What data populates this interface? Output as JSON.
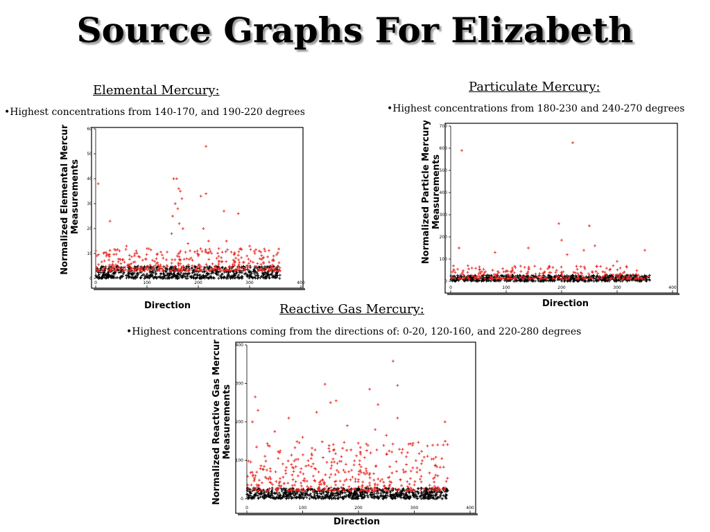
{
  "title": "Source Graphs For Elizabeth",
  "sections": {
    "elemental": {
      "heading": "Elemental Mercury:",
      "note": "•Highest concentrations from 140-170, and 190-220 degrees"
    },
    "particulate": {
      "heading": "Particulate Mercury:",
      "note": "•Highest concentrations from 180-230 and 240-270 degrees"
    },
    "reactive": {
      "heading": "Reactive Gas Mercury:",
      "note": "•Highest concentrations coming from the directions of: 0-20, 120-160, and 220-280 degrees"
    }
  },
  "colors": {
    "high": "#e8251f",
    "low": "#000000",
    "frame": "#000000"
  },
  "chart_data": [
    {
      "type": "scatter",
      "title": "",
      "xlabel": "Direction",
      "ylabel": [
        "Normalized Elemental Mercury",
        "Measurements"
      ],
      "xlim": [
        0,
        400
      ],
      "ylim": [
        0,
        60
      ],
      "xticks": [
        0,
        100,
        200,
        300,
        400
      ],
      "yticks": [
        0,
        10,
        20,
        30,
        40,
        50,
        60
      ],
      "series": [
        {
          "color": "#e8251f",
          "points": [
            [
              5,
              38
            ],
            [
              28,
              23
            ],
            [
              152,
              40
            ],
            [
              158,
              40
            ],
            [
              162,
              36
            ],
            [
              165,
              35
            ],
            [
              168,
              32
            ],
            [
              155,
              30
            ],
            [
              160,
              28
            ],
            [
              150,
              25
            ],
            [
              163,
              22
            ],
            [
              170,
              20
            ],
            [
              148,
              18
            ],
            [
              215,
              53
            ],
            [
              215,
              34
            ],
            [
              205,
              33
            ],
            [
              250,
              27
            ],
            [
              278,
              26
            ],
            [
              210,
              20
            ],
            [
              220,
              15
            ],
            [
              255,
              15
            ],
            [
              240,
              12
            ],
            [
              100,
              12
            ],
            [
              60,
              13
            ],
            [
              180,
              14
            ],
            [
              300,
              13
            ],
            [
              330,
              11
            ]
          ]
        },
        {
          "color": "#000000",
          "points": []
        }
      ],
      "band_note": "dense band: black points 0-5, red points 3-12 across 0-360 degrees"
    },
    {
      "type": "scatter",
      "title": "",
      "xlabel": "Direction",
      "ylabel": [
        "Normalized Particle Mercury",
        "Measurements"
      ],
      "xlim": [
        0,
        400
      ],
      "ylim": [
        0,
        700
      ],
      "xticks": [
        0,
        100,
        200,
        300,
        400
      ],
      "yticks": [
        0,
        100,
        200,
        300,
        400,
        500,
        600,
        700
      ],
      "series": [
        {
          "color": "#e8251f",
          "points": [
            [
              20,
              590
            ],
            [
              220,
              625
            ],
            [
              195,
              260
            ],
            [
              250,
              250
            ],
            [
              200,
              185
            ],
            [
              140,
              150
            ],
            [
              80,
              130
            ],
            [
              260,
              160
            ],
            [
              350,
              140
            ],
            [
              15,
              150
            ],
            [
              240,
              140
            ],
            [
              300,
              90
            ],
            [
              210,
              120
            ]
          ]
        },
        {
          "color": "#000000",
          "points": []
        }
      ],
      "band_note": "dense band: black points 0-30, red points 10-80 across 0-360 degrees"
    },
    {
      "type": "scatter",
      "title": "",
      "xlabel": "Direction",
      "ylabel": [
        "Normalized Reactive Gas Mercury",
        "Measurements"
      ],
      "xlim": [
        0,
        400
      ],
      "ylim": [
        0,
        400
      ],
      "xticks": [
        0,
        100,
        200,
        300,
        400
      ],
      "yticks": [
        0,
        100,
        200,
        300,
        400
      ],
      "series": [
        {
          "color": "#e8251f",
          "points": [
            [
              262,
              358
            ],
            [
              140,
              298
            ],
            [
              220,
              285
            ],
            [
              270,
              295
            ],
            [
              150,
              250
            ],
            [
              160,
              255
            ],
            [
              235,
              245
            ],
            [
              15,
              265
            ],
            [
              10,
              200
            ],
            [
              20,
              230
            ],
            [
              125,
              225
            ],
            [
              355,
              200
            ],
            [
              75,
              210
            ],
            [
              305,
              80
            ],
            [
              50,
              175
            ],
            [
              230,
              180
            ],
            [
              270,
              210
            ],
            [
              180,
              190
            ],
            [
              100,
              160
            ],
            [
              250,
              165
            ]
          ]
        },
        {
          "color": "#000000",
          "points": []
        }
      ],
      "band_note": "dense band: black points 0-30, red points 20-150 across 0-360 degrees"
    }
  ]
}
